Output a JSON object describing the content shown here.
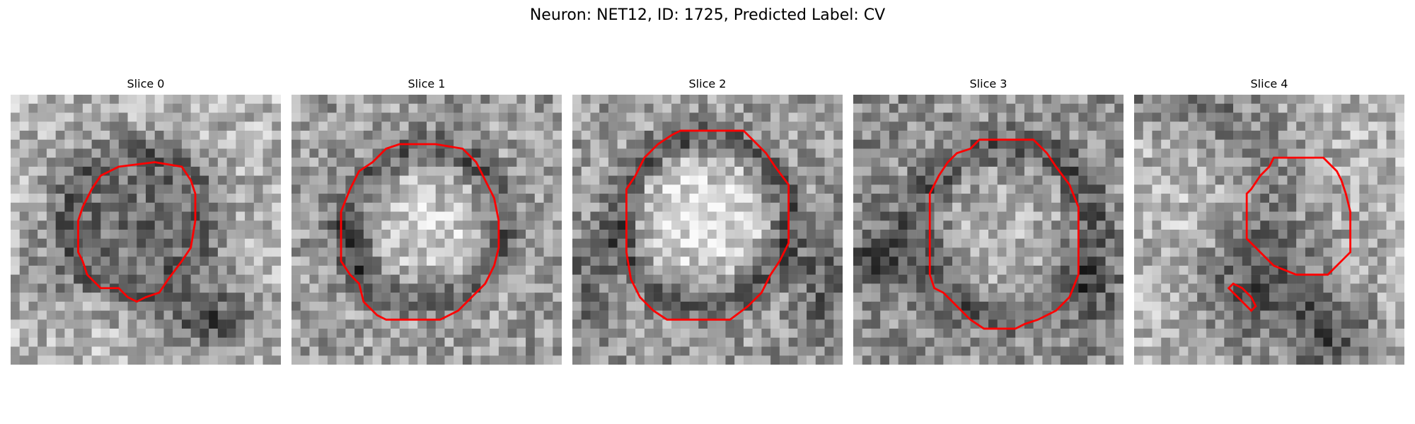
{
  "figure": {
    "title": "Neuron: NET12, ID: 1725, Predicted Label: CV"
  },
  "slices": [
    {
      "label": "Slice 0",
      "contour_count": 1
    },
    {
      "label": "Slice 1",
      "contour_count": 1
    },
    {
      "label": "Slice 2",
      "contour_count": 1
    },
    {
      "label": "Slice 3",
      "contour_count": 1
    },
    {
      "label": "Slice 4",
      "contour_count": 2
    }
  ],
  "colors": {
    "contour": "#ff0000",
    "background": "#ffffff"
  },
  "image": {
    "colormap": "grayscale",
    "grid_cells": 30
  }
}
